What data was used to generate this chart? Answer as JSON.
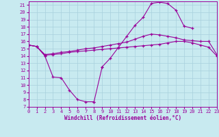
{
  "background_color": "#c8eaf0",
  "grid_color": "#a8d0dc",
  "line_color": "#990099",
  "xlabel": "Windchill (Refroidissement éolien,°C)",
  "xlim": [
    0,
    23
  ],
  "ylim": [
    7,
    21.5
  ],
  "yticks": [
    7,
    8,
    9,
    10,
    11,
    12,
    13,
    14,
    15,
    16,
    17,
    18,
    19,
    20,
    21
  ],
  "xticks": [
    0,
    1,
    2,
    3,
    4,
    5,
    6,
    7,
    8,
    9,
    10,
    11,
    12,
    13,
    14,
    15,
    16,
    17,
    18,
    19,
    20,
    21,
    22,
    23
  ],
  "curves": [
    {
      "x": [
        0,
        1,
        2,
        3,
        4,
        5,
        6,
        7,
        8
      ],
      "y": [
        15.5,
        15.3,
        14.0,
        11.1,
        11.0,
        9.3,
        8.0,
        7.7,
        7.7
      ]
    },
    {
      "x": [
        8,
        9
      ],
      "y": [
        7.7,
        12.5
      ]
    },
    {
      "x": [
        0,
        1,
        2,
        3,
        4,
        5,
        6,
        7,
        8,
        9,
        10,
        11,
        12,
        13,
        14,
        15,
        16,
        17,
        18,
        19,
        20,
        21,
        22,
        23
      ],
      "y": [
        15.5,
        15.3,
        14.1,
        14.2,
        14.3,
        14.5,
        14.6,
        14.7,
        14.8,
        14.9,
        15.0,
        15.1,
        15.2,
        15.3,
        15.4,
        15.5,
        15.6,
        15.8,
        16.0,
        16.0,
        15.8,
        15.5,
        15.2,
        14.0
      ]
    },
    {
      "x": [
        0,
        1,
        2,
        3,
        4,
        5,
        6,
        7,
        8,
        9,
        10,
        11,
        12,
        13,
        14,
        15,
        16,
        17,
        18,
        19,
        20,
        21,
        22,
        23
      ],
      "y": [
        15.5,
        15.3,
        14.2,
        14.3,
        14.5,
        14.6,
        14.8,
        15.0,
        15.1,
        15.3,
        15.5,
        15.7,
        15.9,
        16.3,
        16.7,
        17.0,
        16.9,
        16.7,
        16.5,
        16.2,
        16.1,
        16.0,
        16.0,
        14.2
      ]
    },
    {
      "x": [
        9,
        10,
        11,
        12,
        13,
        14,
        15,
        16,
        17,
        18,
        19,
        20
      ],
      "y": [
        12.5,
        13.7,
        15.2,
        16.7,
        18.2,
        19.3,
        21.2,
        21.4,
        21.2,
        20.3,
        18.1,
        17.8
      ]
    }
  ]
}
